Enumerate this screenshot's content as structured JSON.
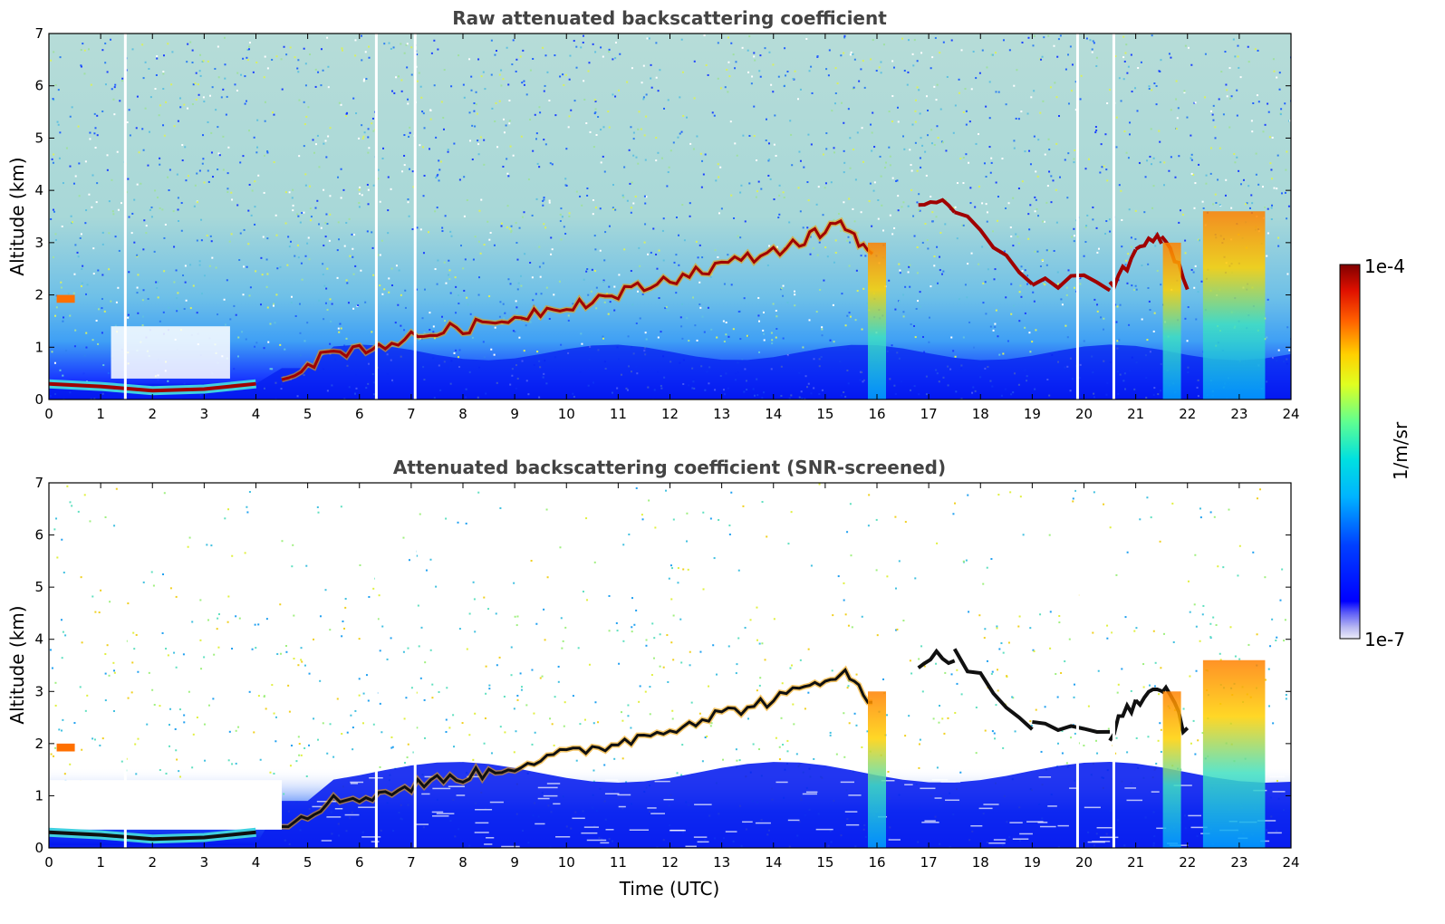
{
  "chart_data": [
    {
      "type": "heatmap",
      "title": "Raw attenuated backscattering coefficient",
      "xlabel": "",
      "ylabel": "Altitude (km)",
      "xlim": [
        0,
        24
      ],
      "ylim": [
        0,
        7
      ],
      "x_ticks": [
        "0",
        "1",
        "2",
        "3",
        "4",
        "5",
        "6",
        "7",
        "8",
        "9",
        "10",
        "11",
        "12",
        "13",
        "14",
        "15",
        "16",
        "17",
        "18",
        "19",
        "20",
        "21",
        "22",
        "23",
        "24"
      ],
      "y_ticks": [
        "0",
        "1",
        "2",
        "3",
        "4",
        "5",
        "6",
        "7"
      ],
      "screened": false,
      "features": {
        "boundary_layer_aerosol_top_km": 0.4,
        "residual_layer": [
          [
            0,
            0.3
          ],
          [
            1,
            0.25
          ],
          [
            2,
            0.17
          ],
          [
            3,
            0.2
          ],
          [
            4,
            0.3
          ]
        ],
        "aerosol_layer_top": [
          [
            4.5,
            0.45
          ],
          [
            5.5,
            0.9
          ],
          [
            6.5,
            1.05
          ],
          [
            7.5,
            1.3
          ],
          [
            8.5,
            1.45
          ],
          [
            9.5,
            1.7
          ],
          [
            10.5,
            1.9
          ],
          [
            11.5,
            2.15
          ],
          [
            12.5,
            2.45
          ],
          [
            13.5,
            2.7
          ],
          [
            14.5,
            3.0
          ],
          [
            15.3,
            3.4
          ],
          [
            16.0,
            2.7
          ]
        ],
        "cloud_segments": [
          [
            16.8,
            3.6
          ],
          [
            17.5,
            3.7
          ],
          [
            19.0,
            2.3
          ],
          [
            20.5,
            2.2
          ],
          [
            21.0,
            2.8
          ],
          [
            21.5,
            3.1
          ],
          [
            22.0,
            2.2
          ]
        ],
        "precipitation_columns_utc": [
          16.0,
          21.7,
          22.9
        ],
        "data_gaps_utc": [
          1.45,
          6.3,
          7.05,
          19.85,
          20.55
        ]
      }
    },
    {
      "type": "heatmap",
      "title": "Attenuated backscattering coefficient (SNR-screened)",
      "xlabel": "Time (UTC)",
      "ylabel": "Altitude (km)",
      "xlim": [
        0,
        24
      ],
      "ylim": [
        0,
        7
      ],
      "x_ticks": [
        "0",
        "1",
        "2",
        "3",
        "4",
        "5",
        "6",
        "7",
        "8",
        "9",
        "10",
        "11",
        "12",
        "13",
        "14",
        "15",
        "16",
        "17",
        "18",
        "19",
        "20",
        "21",
        "22",
        "23",
        "24"
      ],
      "y_ticks": [
        "0",
        "1",
        "2",
        "3",
        "4",
        "5",
        "6",
        "7"
      ],
      "screened": true
    }
  ],
  "colorbar": {
    "label": "1/m/sr",
    "max_label": "1e-4",
    "min_label": "1e-7",
    "scale": "log",
    "colormap": "jet"
  }
}
